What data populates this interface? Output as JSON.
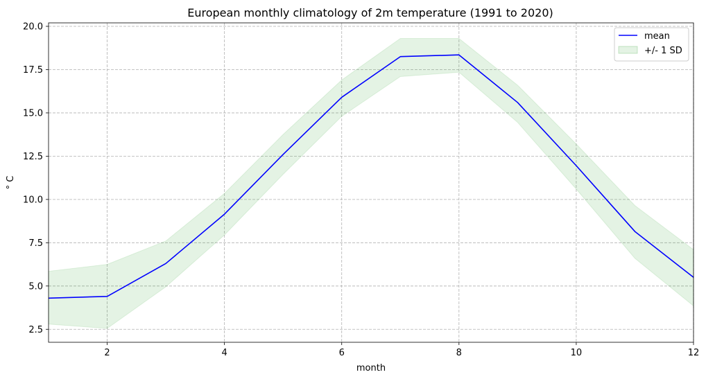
{
  "chart_data": {
    "type": "line",
    "title": "European monthly climatology of 2m temperature (1991 to 2020)",
    "xlabel": "month",
    "ylabel": "° C",
    "xlim": [
      1,
      12
    ],
    "ylim": [
      1.75,
      20.2
    ],
    "xticks": [
      2,
      4,
      6,
      8,
      10,
      12
    ],
    "yticks": [
      2.5,
      5.0,
      7.5,
      10.0,
      12.5,
      15.0,
      17.5,
      20.0
    ],
    "grid": true,
    "legend_position": "top-right",
    "x": [
      1,
      2,
      3,
      4,
      5,
      6,
      7,
      8,
      9,
      10,
      11,
      12
    ],
    "series": [
      {
        "name": "mean",
        "kind": "line",
        "color": "#0000ff",
        "values": [
          4.3,
          4.4,
          6.3,
          9.15,
          12.6,
          15.9,
          18.25,
          18.35,
          15.6,
          11.95,
          8.15,
          5.5
        ]
      },
      {
        "name": "+/- 1 SD",
        "kind": "band",
        "color": "#2ca02c",
        "lower": [
          2.8,
          2.55,
          4.95,
          7.95,
          11.45,
          14.8,
          17.1,
          17.35,
          14.45,
          10.6,
          6.6,
          3.85
        ],
        "upper": [
          5.85,
          6.25,
          7.6,
          10.35,
          13.75,
          16.9,
          19.3,
          19.3,
          16.6,
          13.2,
          9.65,
          7.1
        ]
      }
    ]
  }
}
